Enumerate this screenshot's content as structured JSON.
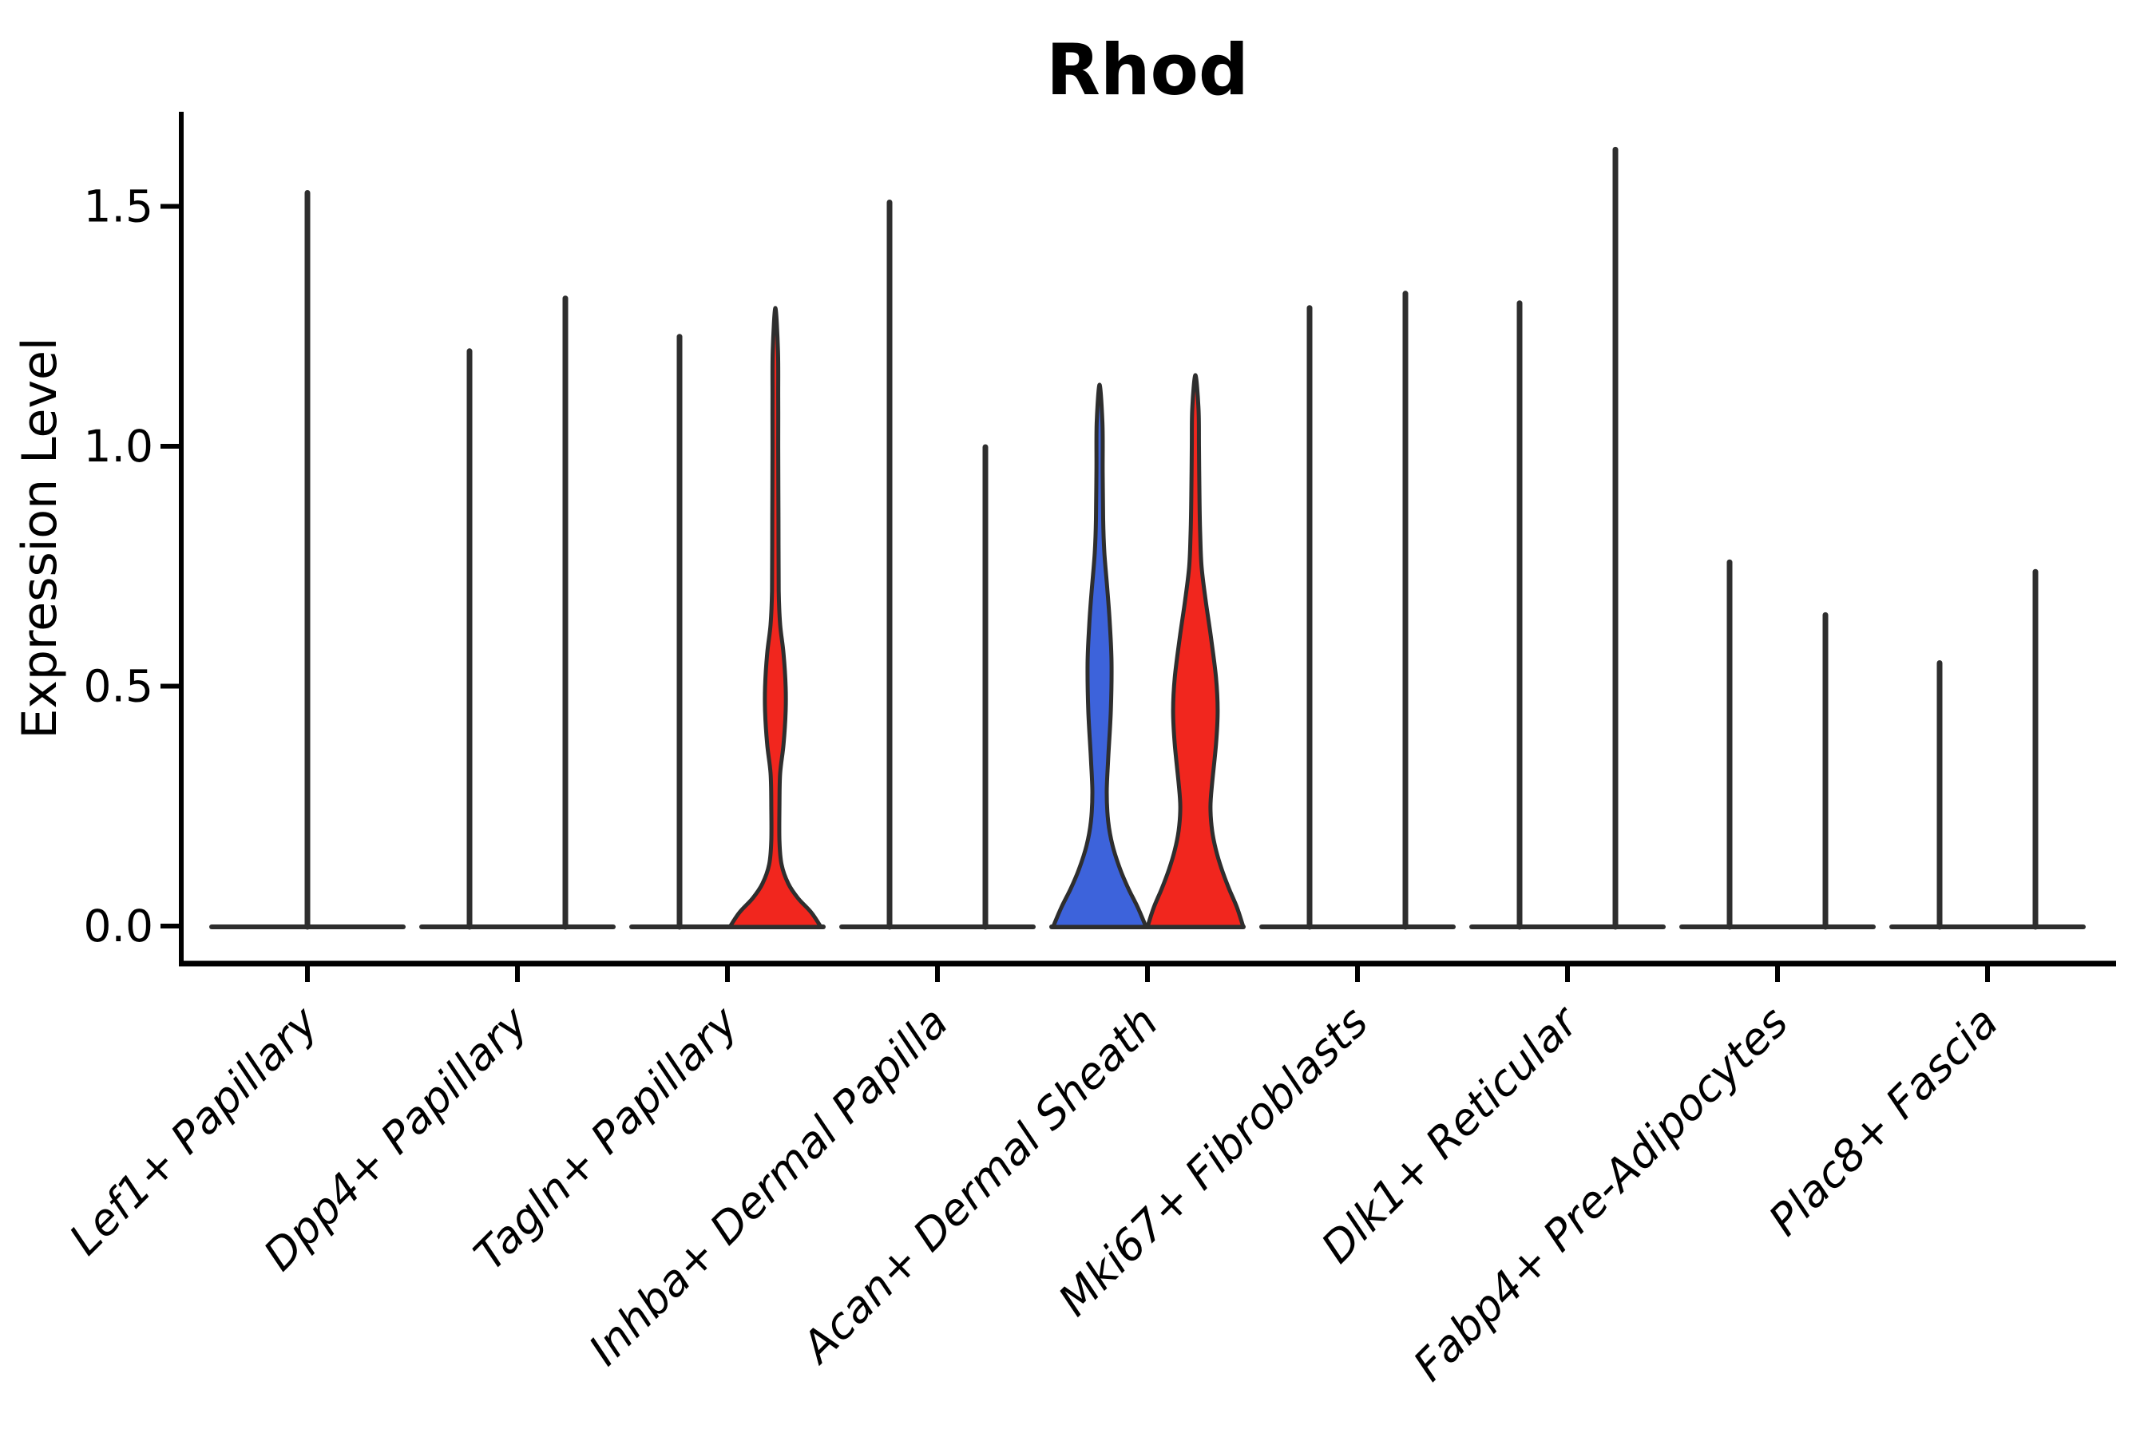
{
  "title": "Rhod",
  "ylabel": "Expression Level",
  "colors": {
    "group_blue_fill": "#3D63DB",
    "group_red_fill": "#F1261E",
    "violin_stroke": "#2E2E2E",
    "axis": "#000000",
    "background": "#FFFFFF"
  },
  "chart_data": {
    "type": "violin",
    "title": "Rhod",
    "xlabel": "",
    "ylabel": "Expression Level",
    "ylim": [
      0,
      1.68
    ],
    "yticks": [
      {
        "value": 0.0,
        "label": "0.0"
      },
      {
        "value": 0.5,
        "label": "0.5"
      },
      {
        "value": 1.0,
        "label": "1.0"
      },
      {
        "value": 1.5,
        "label": "1.5"
      }
    ],
    "grid": false,
    "legend": "none",
    "groups": [
      "blue",
      "red"
    ],
    "categories": [
      {
        "label": "Lef1+ Papillary",
        "violins": [
          {
            "side": "single",
            "max": 1.53,
            "fill": "none"
          }
        ]
      },
      {
        "label": "Dpp4+ Papillary",
        "violins": [
          {
            "side": "left",
            "max": 1.2,
            "fill": "none"
          },
          {
            "side": "right",
            "max": 1.31,
            "fill": "none"
          }
        ]
      },
      {
        "label": "Tagln+ Papillary",
        "violins": [
          {
            "side": "left",
            "max": 1.23,
            "fill": "none"
          },
          {
            "side": "right",
            "max": 1.29,
            "fill": "red",
            "profile_vw": [
              [
                0,
                0.95
              ],
              [
                0.03,
                0.75
              ],
              [
                0.06,
                0.47
              ],
              [
                0.09,
                0.27
              ],
              [
                0.13,
                0.13
              ],
              [
                0.18,
                0.085
              ],
              [
                0.25,
                0.085
              ],
              [
                0.32,
                0.1
              ],
              [
                0.38,
                0.17
              ],
              [
                0.45,
                0.215
              ],
              [
                0.5,
                0.215
              ],
              [
                0.57,
                0.17
              ],
              [
                0.63,
                0.1
              ],
              [
                0.7,
                0.07
              ],
              [
                0.85,
                0.065
              ],
              [
                1.0,
                0.06
              ],
              [
                1.1,
                0.06
              ],
              [
                1.2,
                0.055
              ],
              [
                1.29,
                0.0
              ]
            ]
          }
        ]
      },
      {
        "label": "Inhba+ Dermal Papilla",
        "violins": [
          {
            "side": "left",
            "max": 1.51,
            "fill": "none"
          },
          {
            "side": "right",
            "max": 1.0,
            "fill": "none"
          }
        ]
      },
      {
        "label": "Acan+ Dermal Sheath",
        "violins": [
          {
            "side": "left",
            "max": 1.13,
            "fill": "blue",
            "profile_vw": [
              [
                0,
                0.97
              ],
              [
                0.04,
                0.8
              ],
              [
                0.08,
                0.6
              ],
              [
                0.12,
                0.43
              ],
              [
                0.17,
                0.27
              ],
              [
                0.22,
                0.18
              ],
              [
                0.28,
                0.15
              ],
              [
                0.35,
                0.18
              ],
              [
                0.45,
                0.235
              ],
              [
                0.55,
                0.25
              ],
              [
                0.63,
                0.215
              ],
              [
                0.7,
                0.165
              ],
              [
                0.78,
                0.1
              ],
              [
                0.85,
                0.075
              ],
              [
                0.95,
                0.065
              ],
              [
                1.05,
                0.06
              ],
              [
                1.13,
                0.0
              ]
            ]
          },
          {
            "side": "right",
            "max": 1.15,
            "fill": "red",
            "profile_vw": [
              [
                0,
                1.0
              ],
              [
                0.04,
                0.87
              ],
              [
                0.08,
                0.7
              ],
              [
                0.12,
                0.55
              ],
              [
                0.16,
                0.43
              ],
              [
                0.2,
                0.35
              ],
              [
                0.25,
                0.315
              ],
              [
                0.3,
                0.35
              ],
              [
                0.38,
                0.43
              ],
              [
                0.45,
                0.465
              ],
              [
                0.52,
                0.43
              ],
              [
                0.6,
                0.33
              ],
              [
                0.68,
                0.215
              ],
              [
                0.75,
                0.13
              ],
              [
                0.82,
                0.1
              ],
              [
                0.9,
                0.085
              ],
              [
                1.0,
                0.075
              ],
              [
                1.08,
                0.065
              ],
              [
                1.15,
                0.0
              ]
            ]
          }
        ]
      },
      {
        "label": "Mki67+ Fibroblasts",
        "violins": [
          {
            "side": "left",
            "max": 1.29,
            "fill": "none"
          },
          {
            "side": "right",
            "max": 1.32,
            "fill": "none"
          }
        ]
      },
      {
        "label": "Dlk1+ Reticular",
        "violins": [
          {
            "side": "left",
            "max": 1.3,
            "fill": "none"
          },
          {
            "side": "right",
            "max": 1.62,
            "fill": "none"
          }
        ]
      },
      {
        "label": "Fabp4+ Pre-Adipocytes",
        "violins": [
          {
            "side": "left",
            "max": 0.76,
            "fill": "none"
          },
          {
            "side": "right",
            "max": 0.65,
            "fill": "none"
          }
        ]
      },
      {
        "label": "Plac8+ Fascia",
        "violins": [
          {
            "side": "left",
            "max": 0.55,
            "fill": "none"
          },
          {
            "side": "right",
            "max": 0.74,
            "fill": "none"
          }
        ]
      }
    ]
  }
}
